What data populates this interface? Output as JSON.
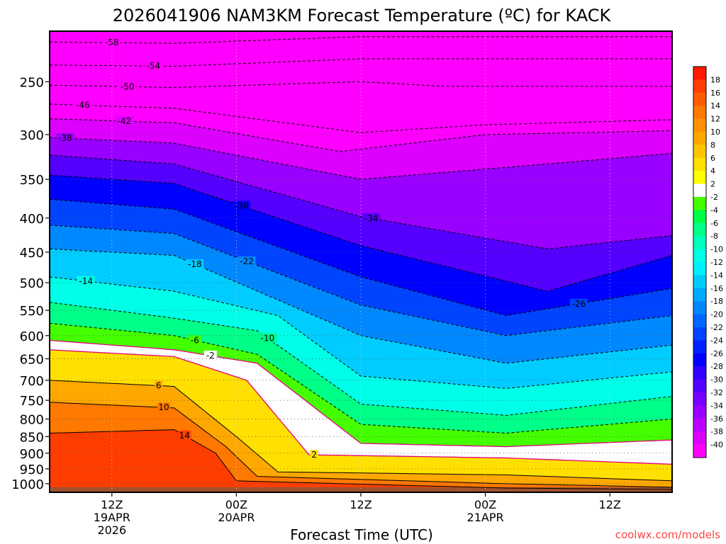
{
  "chart_data": {
    "type": "heatmap",
    "title": "2026041906 NAM3KM Forecast Temperature (ºC) for KACK",
    "xlabel": "Forecast Time (UTC)",
    "ylabel": "",
    "watermark": "coolwx.com/models",
    "y_axis": {
      "scale": "log-pressure",
      "range": [
        210,
        1030
      ],
      "ticks": [
        250,
        300,
        350,
        400,
        450,
        500,
        550,
        600,
        650,
        700,
        750,
        800,
        850,
        900,
        950,
        1000
      ],
      "tick_labels": [
        "250",
        "300",
        "350",
        "400",
        "450",
        "500",
        "550",
        "600",
        "650",
        "700",
        "750",
        "800",
        "850",
        "900",
        "950",
        "1000"
      ]
    },
    "x_axis": {
      "units": "hours from 2026041906",
      "range": [
        0,
        60
      ],
      "ticks": [
        6,
        18,
        30,
        42,
        54
      ],
      "tick_labels": [
        {
          "hour": 6,
          "time": "12Z",
          "date": "19APR",
          "year": "2026"
        },
        {
          "hour": 18,
          "time": "00Z",
          "date": "20APR",
          "year": ""
        },
        {
          "hour": 30,
          "time": "12Z",
          "date": "",
          "year": ""
        },
        {
          "hour": 42,
          "time": "00Z",
          "date": "21APR",
          "year": ""
        },
        {
          "hour": 54,
          "time": "12Z",
          "date": "",
          "year": ""
        }
      ]
    },
    "grid": "dotted",
    "colorbar": {
      "position": "right",
      "labels": [
        "18",
        "16",
        "14",
        "12",
        "10",
        "8",
        "6",
        "4",
        "2",
        "-2",
        "-4",
        "-6",
        "-8",
        "-10",
        "-12",
        "-14",
        "-16",
        "-18",
        "-20",
        "-22",
        "-24",
        "-26",
        "-28",
        "-30",
        "-32",
        "-34",
        "-36",
        "-38",
        "-40"
      ],
      "colors": [
        "#ff1a00",
        "#ff3d00",
        "#ff5c00",
        "#ff7800",
        "#ff9100",
        "#ffa800",
        "#ffc400",
        "#ffe000",
        "#ffff00",
        "#ffffff",
        "#44ff00",
        "#00ff44",
        "#00ff88",
        "#00ffbb",
        "#00ffe8",
        "#00eeff",
        "#00ccff",
        "#00aaff",
        "#0088ff",
        "#0066ff",
        "#0044ff",
        "#0022ff",
        "#0000ff",
        "#3300ff",
        "#5500ff",
        "#7700ff",
        "#9900ff",
        "#bb00ff",
        "#dd00ff",
        "#ff00ff"
      ]
    },
    "ground_color": "#a0522d",
    "series": [
      {
        "name": "-58",
        "value": -58,
        "levels": [
          [
            0,
            218
          ],
          [
            12,
            219
          ],
          [
            30,
            214
          ]
        ],
        "label_at": 6
      },
      {
        "name": "-54",
        "value": -54,
        "levels": [
          [
            0,
            236
          ],
          [
            12,
            237
          ],
          [
            30,
            231
          ]
        ],
        "label_at": 10
      },
      {
        "name": "-50",
        "value": -50,
        "levels": [
          [
            0,
            253
          ],
          [
            12,
            255
          ],
          [
            30,
            250
          ],
          [
            38,
            254
          ]
        ],
        "label_at": 7.5
      },
      {
        "name": "-46",
        "value": -46,
        "levels": [
          [
            0,
            270
          ],
          [
            12,
            274
          ],
          [
            30,
            298
          ],
          [
            42,
            290
          ],
          [
            60,
            285
          ]
        ],
        "label_at": 3.2
      },
      {
        "name": "-42",
        "value": -42,
        "levels": [
          [
            0,
            284
          ],
          [
            12,
            288
          ],
          [
            28,
            318
          ],
          [
            42,
            300
          ],
          [
            60,
            296
          ]
        ],
        "label_at": 7.2
      },
      {
        "name": "-38",
        "value": -38,
        "levels": [
          [
            0,
            303
          ],
          [
            12,
            309
          ],
          [
            30,
            350
          ],
          [
            50,
            330
          ],
          [
            60,
            320
          ]
        ],
        "label_at": 1.5
      },
      {
        "name": "-34",
        "value": -34,
        "levels": [
          [
            0,
            322
          ],
          [
            12,
            332
          ],
          [
            30,
            398
          ],
          [
            48,
            445
          ],
          [
            60,
            425
          ]
        ],
        "label_at": 31
      },
      {
        "name": "-30",
        "value": -30,
        "levels": [
          [
            0,
            345
          ],
          [
            12,
            355
          ],
          [
            30,
            440
          ],
          [
            48,
            515
          ],
          [
            60,
            455
          ]
        ],
        "label_at": 18.5
      },
      {
        "name": "-26",
        "value": -26,
        "levels": [
          [
            0,
            375
          ],
          [
            12,
            388
          ],
          [
            30,
            490
          ],
          [
            44,
            560
          ],
          [
            60,
            510
          ]
        ],
        "label_at": 51
      },
      {
        "name": "-22",
        "value": -22,
        "levels": [
          [
            0,
            410
          ],
          [
            12,
            422
          ],
          [
            30,
            540
          ],
          [
            44,
            600
          ],
          [
            60,
            560
          ]
        ],
        "label_at": 19
      },
      {
        "name": "-18",
        "value": -18,
        "levels": [
          [
            0,
            445
          ],
          [
            12,
            455
          ],
          [
            30,
            600
          ],
          [
            44,
            660
          ],
          [
            60,
            620
          ]
        ],
        "label_at": 14
      },
      {
        "name": "-14",
        "value": -14,
        "levels": [
          [
            0,
            490
          ],
          [
            12,
            515
          ],
          [
            22,
            560
          ],
          [
            30,
            690
          ],
          [
            44,
            720
          ],
          [
            60,
            680
          ]
        ],
        "label_at": 3.5
      },
      {
        "name": "-10",
        "value": -10,
        "levels": [
          [
            0,
            535
          ],
          [
            12,
            565
          ],
          [
            20,
            590
          ],
          [
            30,
            760
          ],
          [
            44,
            790
          ],
          [
            60,
            740
          ]
        ],
        "label_at": 21
      },
      {
        "name": "-6",
        "value": -6,
        "levels": [
          [
            0,
            575
          ],
          [
            12,
            600
          ],
          [
            20,
            640
          ],
          [
            30,
            815
          ],
          [
            44,
            840
          ],
          [
            60,
            800
          ]
        ],
        "label_at": 14
      },
      {
        "name": "-2",
        "value": -2,
        "levels": [
          [
            0,
            610
          ],
          [
            12,
            630
          ],
          [
            20,
            660
          ],
          [
            30,
            870
          ],
          [
            44,
            880
          ],
          [
            60,
            860
          ]
        ],
        "label_at": 15.5
      },
      {
        "name": "2",
        "value": 2,
        "levels": [
          [
            0,
            630
          ],
          [
            12,
            645
          ],
          [
            19,
            700
          ],
          [
            25,
            905
          ],
          [
            44,
            915
          ],
          [
            60,
            935
          ]
        ],
        "label_at": 25.5
      },
      {
        "name": "6",
        "value": 6,
        "levels": [
          [
            0,
            700
          ],
          [
            12,
            715
          ],
          [
            18,
            850
          ],
          [
            22,
            960
          ],
          [
            44,
            970
          ],
          [
            60,
            990
          ]
        ],
        "label_at": 10.5
      },
      {
        "name": "10",
        "value": 10,
        "levels": [
          [
            0,
            755
          ],
          [
            12,
            770
          ],
          [
            17,
            880
          ],
          [
            20,
            975
          ],
          [
            44,
            1000
          ],
          [
            60,
            1012
          ]
        ],
        "label_at": 11
      },
      {
        "name": "14",
        "value": 14,
        "levels": [
          [
            0,
            840
          ],
          [
            12,
            830
          ],
          [
            16,
            900
          ],
          [
            18,
            990
          ],
          [
            44,
            1015
          ],
          [
            60,
            1020
          ]
        ],
        "label_at": 13
      }
    ]
  }
}
